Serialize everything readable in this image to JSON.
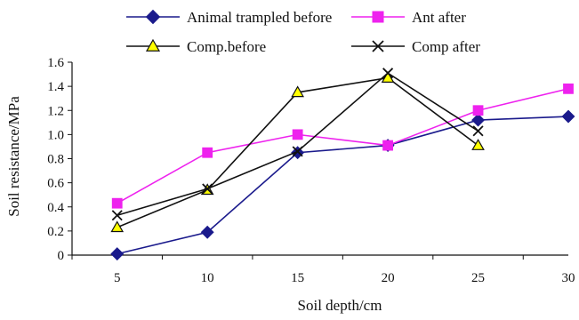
{
  "chart_data": {
    "type": "line",
    "title": "",
    "xlabel": "Soil depth/cm",
    "ylabel": "Soil resistance/MPa",
    "x": [
      5,
      10,
      15,
      20,
      25,
      30
    ],
    "x_tick_labels": [
      "5",
      "10",
      "15",
      "20",
      "25",
      "30"
    ],
    "ylim": [
      0,
      1.6
    ],
    "y_ticks": [
      0,
      0.2,
      0.4,
      0.6,
      0.8,
      1.0,
      1.2,
      1.4,
      1.6
    ],
    "y_tick_labels": [
      "0",
      "0.2",
      "0.4",
      "0.6",
      "0.8",
      "1.0",
      "1.2",
      "1.4",
      "1.6"
    ],
    "grid": false,
    "legend_position": "top",
    "series": [
      {
        "name": "Animal trampled before",
        "color": "#1a1a8c",
        "marker": "diamond",
        "x": [
          5,
          10,
          15,
          20,
          25,
          30
        ],
        "values": [
          0.01,
          0.19,
          0.85,
          0.91,
          1.12,
          1.15
        ]
      },
      {
        "name": "Ant after",
        "color": "#ee22ee",
        "marker": "square",
        "x": [
          5,
          10,
          15,
          20,
          25,
          30
        ],
        "values": [
          0.43,
          0.85,
          1.0,
          0.91,
          1.2,
          1.38
        ]
      },
      {
        "name": "Comp.before",
        "color": "#111111",
        "marker": "triangle",
        "marker_fill": "#ffff00",
        "x": [
          5,
          10,
          15,
          20,
          25
        ],
        "values": [
          0.23,
          0.54,
          1.35,
          1.47,
          0.91
        ]
      },
      {
        "name": "Comp after",
        "color": "#111111",
        "marker": "x",
        "x": [
          5,
          10,
          15,
          20,
          25
        ],
        "values": [
          0.33,
          0.55,
          0.86,
          1.51,
          1.03
        ]
      }
    ]
  }
}
